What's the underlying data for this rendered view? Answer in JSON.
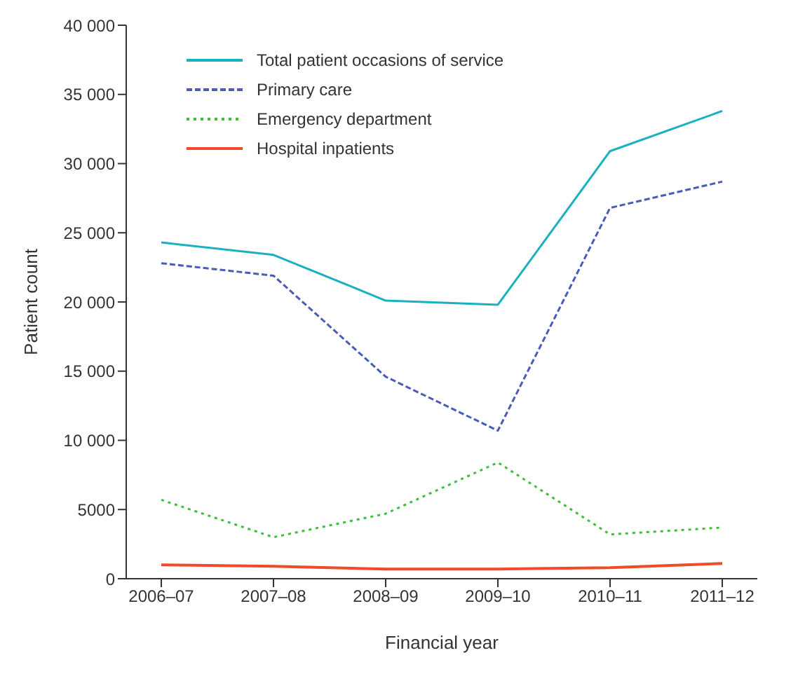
{
  "chart_data": {
    "type": "line",
    "xlabel": "Financial year",
    "ylabel": "Patient count",
    "categories": [
      "2006–07",
      "2007–08",
      "2008–09",
      "2009–10",
      "2010–11",
      "2011–12"
    ],
    "series": [
      {
        "name": "Total patient occasions  of service",
        "color": "#1ab0bf",
        "line_style": "solid",
        "values": [
          24300,
          23400,
          20100,
          19800,
          30900,
          33800
        ]
      },
      {
        "name": "Primary care",
        "color": "#4a5cb8",
        "line_style": "dashed",
        "values": [
          22800,
          21900,
          14600,
          10700,
          26800,
          28700
        ]
      },
      {
        "name": "Emergency department",
        "color": "#3cbf3c",
        "line_style": "dotted",
        "values": [
          5700,
          3000,
          4700,
          8400,
          3200,
          3700
        ]
      },
      {
        "name": "Hospital inpatients",
        "color": "#f04a2a",
        "line_style": "solid",
        "values": [
          1000,
          900,
          700,
          700,
          800,
          1100
        ]
      }
    ],
    "ylim": [
      0,
      40000
    ],
    "yticks": [
      0,
      {
        "value": 5000,
        "label": "5000"
      },
      {
        "value": 10000,
        "label": "10 000"
      },
      {
        "value": 15000,
        "label": "15 000"
      },
      {
        "value": 20000,
        "label": "20 000"
      },
      {
        "value": 25000,
        "label": "25 000"
      },
      {
        "value": 30000,
        "label": "30 000"
      },
      {
        "value": 35000,
        "label": "35 000"
      },
      {
        "value": 40000,
        "label": "40 000"
      }
    ],
    "grid": false,
    "legend": "top left",
    "marker": "none"
  }
}
